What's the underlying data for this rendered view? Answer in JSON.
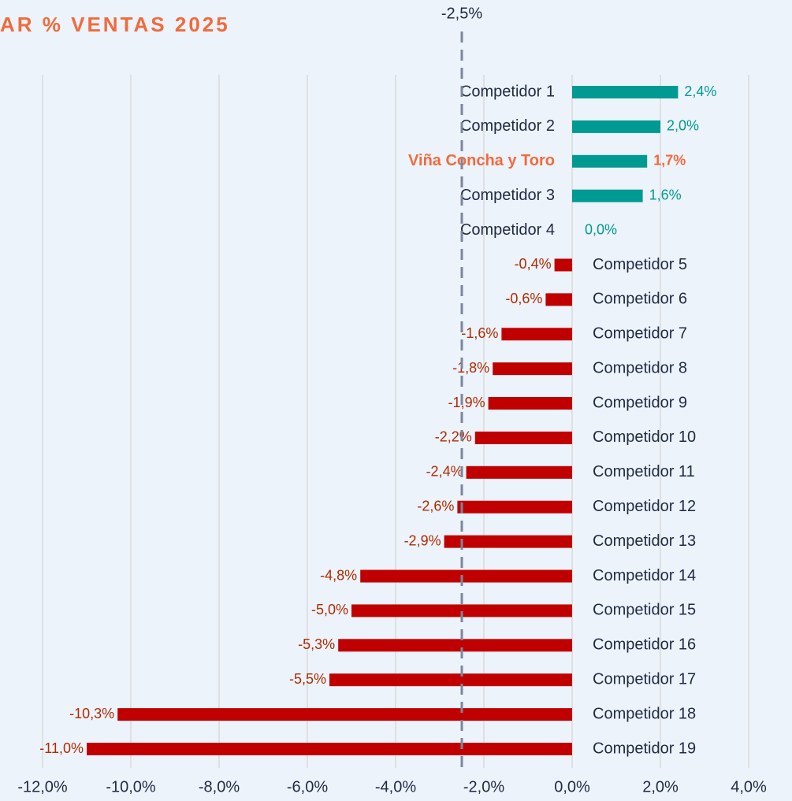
{
  "chart_data": {
    "type": "barh",
    "title": "AR % VENTAS 2025",
    "categories": [
      "Competidor 1",
      "Competidor 2",
      "Viña Concha y Toro",
      "Competidor 3",
      "Competidor 4",
      "Competidor 5",
      "Competidor 6",
      "Competidor 7",
      "Competidor 8",
      "Competidor 9",
      "Competidor 10",
      "Competidor 11",
      "Competidor 12",
      "Competidor 13",
      "Competidor 14",
      "Competidor 15",
      "Competidor 16",
      "Competidor 17",
      "Competidor 18",
      "Competidor 19"
    ],
    "values": [
      2.4,
      2.0,
      1.7,
      1.6,
      0.0,
      -0.4,
      -0.6,
      -1.6,
      -1.8,
      -1.9,
      -2.2,
      -2.4,
      -2.6,
      -2.9,
      -4.8,
      -5.0,
      -5.3,
      -5.5,
      -10.3,
      -11.0
    ],
    "value_labels": [
      "2,4%",
      "2,0%",
      "1,7%",
      "1,6%",
      "0,0%",
      "-0,4%",
      "-0,6%",
      "-1,6%",
      "-1,8%",
      "-1,9%",
      "-2,2%",
      "-2,4%",
      "-2,6%",
      "-2,9%",
      "-4,8%",
      "-5,0%",
      "-5,3%",
      "-5,5%",
      "-10,3%",
      "-11,0%"
    ],
    "positive_color": "#009a93",
    "negative_color": "#c00000",
    "highlight": {
      "index": 2,
      "color": "#f26a3c"
    },
    "xlim": [
      -12,
      4
    ],
    "xticks": [
      {
        "value": -12,
        "label": "-12,0%"
      },
      {
        "value": -10,
        "label": "-10,0%"
      },
      {
        "value": -8,
        "label": "-8,0%"
      },
      {
        "value": -6,
        "label": "-6,0%"
      },
      {
        "value": -4,
        "label": "-4,0%"
      },
      {
        "value": -2,
        "label": "-2,0%"
      },
      {
        "value": 0,
        "label": "0,0%"
      },
      {
        "value": 2,
        "label": "2,0%"
      },
      {
        "value": 4,
        "label": "4,0%"
      }
    ],
    "grid": true,
    "reference_line": {
      "value": -2.5,
      "label": "-2,5%"
    }
  }
}
